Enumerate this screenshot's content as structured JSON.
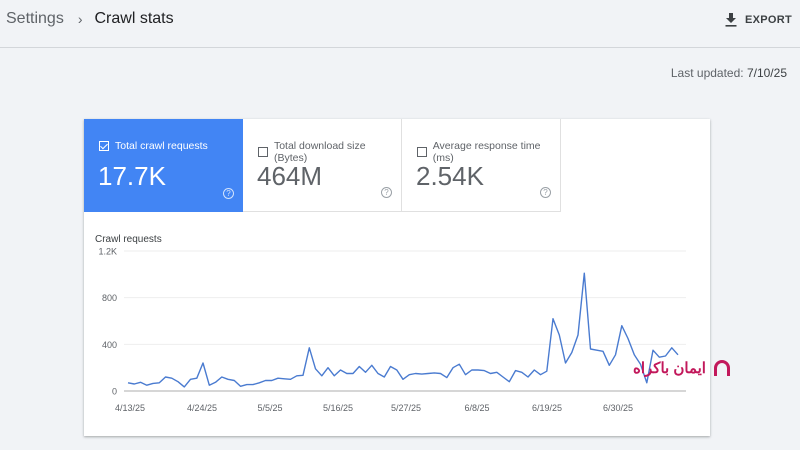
{
  "breadcrumb": {
    "parent": "Settings",
    "separator": "›",
    "current": "Crawl stats"
  },
  "toolbar": {
    "export_label": "EXPORT",
    "export_icon": "download-icon"
  },
  "last_updated": {
    "label": "Last updated:",
    "value": "7/10/25"
  },
  "metrics": [
    {
      "label": "Total crawl requests",
      "value": "17.7K",
      "checked": true,
      "help_icon": "?"
    },
    {
      "label": "Total download size (Bytes)",
      "value": "464M",
      "checked": false,
      "help_icon": "?"
    },
    {
      "label": "Average response time (ms)",
      "value": "2.54K",
      "checked": false,
      "help_icon": "?"
    }
  ],
  "colors": {
    "accent": "#4285f4",
    "line": "#4a7bd0",
    "watermark": "#c2185b"
  },
  "watermark": {
    "text": "ایمان باکراه"
  },
  "chart_data": {
    "type": "line",
    "title": "Crawl requests",
    "xlabel": "",
    "ylabel": "Crawl requests",
    "ylim": [
      0,
      1200
    ],
    "yticks": [
      "0",
      "400",
      "800",
      "1.2K"
    ],
    "x_tick_labels": [
      "4/13/25",
      "4/24/25",
      "5/5/25",
      "5/16/25",
      "5/27/25",
      "6/8/25",
      "6/19/25",
      "6/30/25"
    ],
    "grid": true,
    "series": [
      {
        "name": "Total crawl requests",
        "values": [
          70,
          60,
          75,
          50,
          65,
          70,
          120,
          110,
          80,
          35,
          100,
          110,
          240,
          50,
          75,
          120,
          100,
          90,
          40,
          55,
          55,
          70,
          90,
          90,
          110,
          105,
          100,
          130,
          135,
          370,
          190,
          130,
          200,
          130,
          180,
          150,
          150,
          210,
          160,
          220,
          150,
          120,
          210,
          180,
          100,
          140,
          150,
          145,
          150,
          155,
          150,
          115,
          200,
          230,
          140,
          180,
          180,
          175,
          150,
          160,
          120,
          80,
          175,
          160,
          120,
          180,
          140,
          170,
          620,
          480,
          240,
          330,
          480,
          1010,
          360,
          350,
          340,
          220,
          310,
          560,
          450,
          310,
          230,
          70,
          350,
          290,
          300,
          370,
          310
        ]
      }
    ]
  }
}
